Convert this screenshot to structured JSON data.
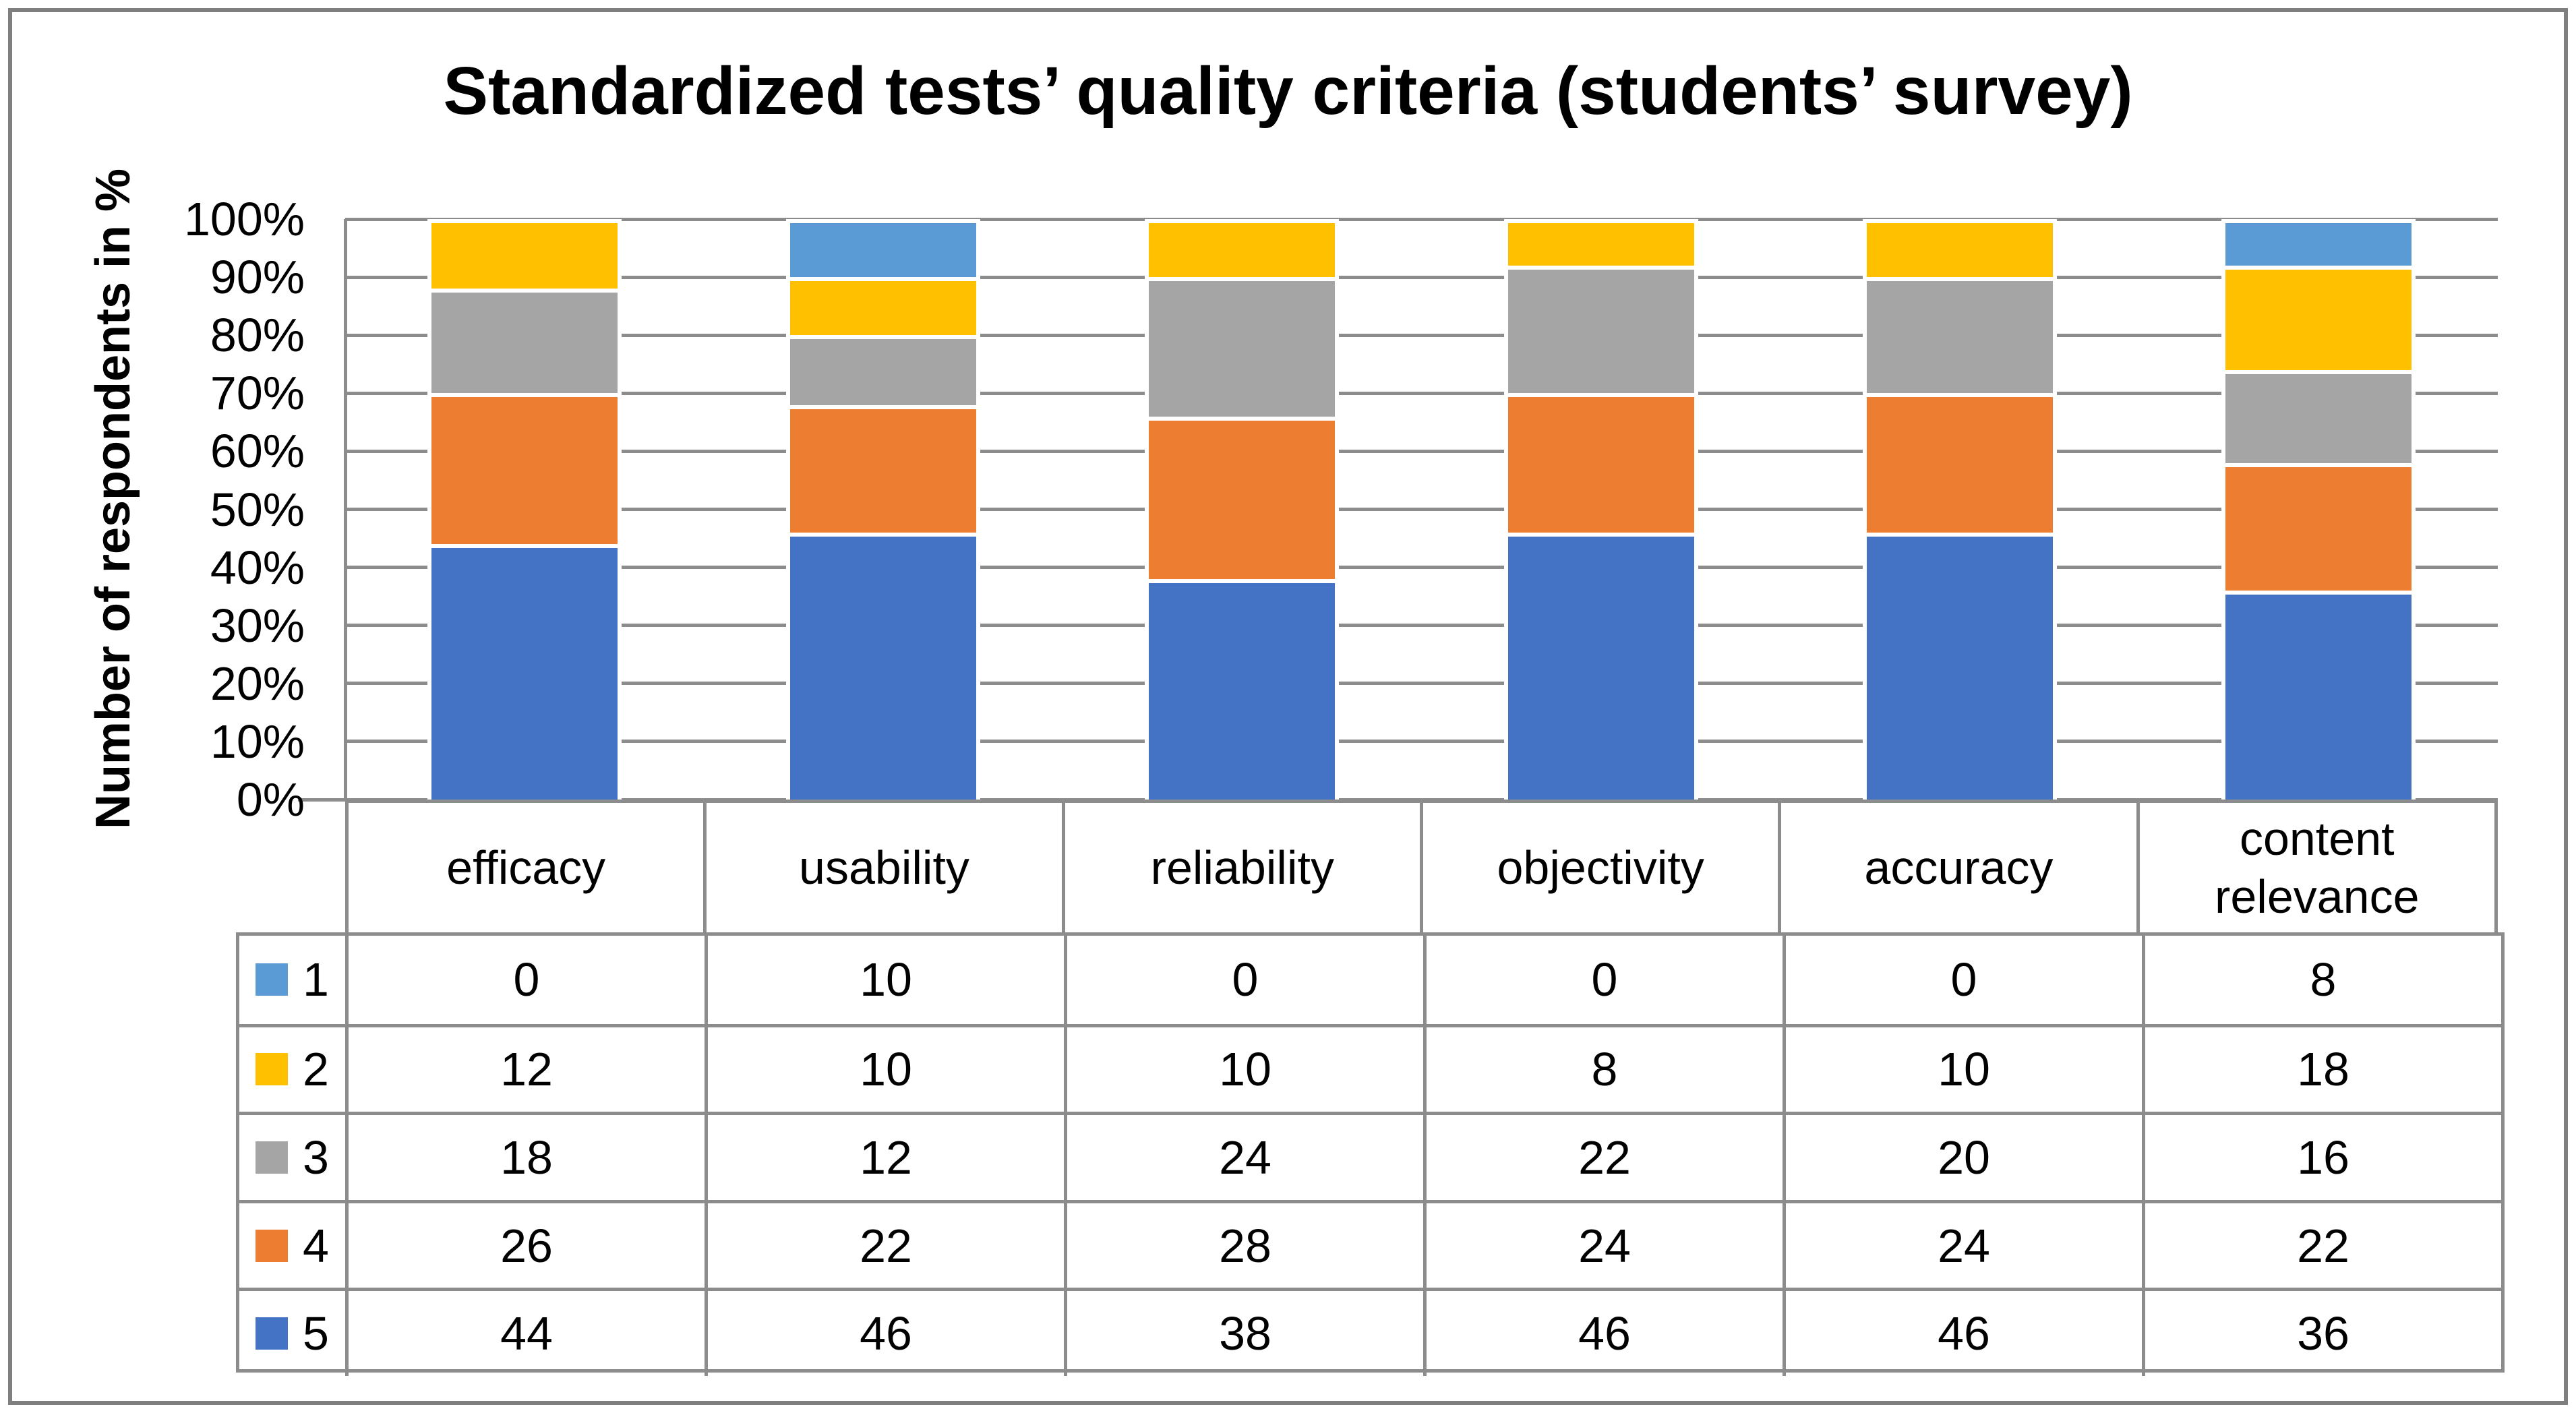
{
  "chart_title": "Standardized tests’ quality criteria (students’ survey)",
  "y_axis": {
    "title": "Number of respondents in %",
    "min": 0,
    "max": 100,
    "step": 10,
    "tick_labels": [
      "0%",
      "10%",
      "20%",
      "30%",
      "40%",
      "50%",
      "60%",
      "70%",
      "80%",
      "90%",
      "100%"
    ]
  },
  "colors": {
    "grid": "#8C8C8C",
    "frame": "#7F7F7F",
    "table_border": "#8C8C8C",
    "background": "#FFFFFF",
    "series_1": "#5B9BD5",
    "series_2": "#FFC000",
    "series_3": "#A5A5A5",
    "series_4": "#ED7D31",
    "series_5": "#4472C4"
  },
  "chart_data": {
    "type": "bar",
    "stacked": true,
    "percent_stacked": true,
    "title": "Standardized tests’ quality criteria (students’ survey)",
    "xlabel": "",
    "ylabel": "Number of respondents in %",
    "ylim": [
      0,
      100
    ],
    "ytick_step": 10,
    "grid": true,
    "legend_position": "data-table-left-column",
    "data_table_shown": true,
    "categories": [
      "efficacy",
      "usability",
      "reliability",
      "objectivity",
      "accuracy",
      "content relevance"
    ],
    "series": [
      {
        "name": "1",
        "color": "#5B9BD5",
        "values": [
          0,
          10,
          0,
          0,
          0,
          8
        ]
      },
      {
        "name": "2",
        "color": "#FFC000",
        "values": [
          12,
          10,
          10,
          8,
          10,
          18
        ]
      },
      {
        "name": "3",
        "color": "#A5A5A5",
        "values": [
          18,
          12,
          24,
          22,
          20,
          16
        ]
      },
      {
        "name": "4",
        "color": "#ED7D31",
        "values": [
          26,
          22,
          28,
          24,
          24,
          22
        ]
      },
      {
        "name": "5",
        "color": "#4472C4",
        "values": [
          44,
          46,
          38,
          46,
          46,
          36
        ]
      }
    ],
    "stack_order_bottom_to_top": [
      "5",
      "4",
      "3",
      "2",
      "1"
    ]
  }
}
